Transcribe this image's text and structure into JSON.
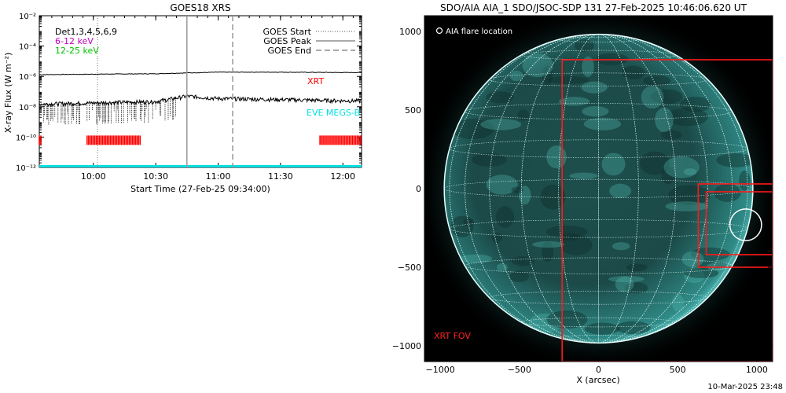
{
  "goes_panel": {
    "title": "GOES18 XRS",
    "ylabel": "X-ray Flux (W m⁻²)",
    "xlabel": "Start Time (27-Feb-25 09:34:00)",
    "legend_left": [
      {
        "label": "Det1,3,4,5,6,9",
        "color": "#000000"
      },
      {
        "label": "6-12 keV",
        "color": "#c000c0"
      },
      {
        "label": "12-25 keV",
        "color": "#00c000"
      }
    ],
    "legend_right": [
      {
        "label": "GOES Start",
        "style": "dotted"
      },
      {
        "label": "GOES Peak",
        "style": "solid"
      },
      {
        "label": "GOES End",
        "style": "dashed"
      }
    ],
    "xrt_label": "XRT",
    "eve_label": "EVE MEGS-B",
    "eve_color": "#00e0e0",
    "xrt_color": "#ff0000",
    "markers": {
      "goes_start": "10:02",
      "goes_peak": "10:45",
      "goes_end": "11:07"
    }
  },
  "chart_data": [
    {
      "type": "line",
      "title": "GOES18 XRS",
      "xlabel": "Start Time (27-Feb-25 09:34:00)",
      "ylabel": "X-ray Flux (W m⁻²)",
      "yscale": "log",
      "ylim": [
        1e-12,
        0.01
      ],
      "xlim": [
        "09:34",
        "12:09"
      ],
      "xticks": [
        "10:00",
        "10:30",
        "11:00",
        "11:30",
        "12:00"
      ],
      "yticks": [
        "10⁻¹²",
        "10⁻¹⁰",
        "10⁻⁸",
        "10⁻⁶",
        "10⁻⁴",
        "10⁻²"
      ],
      "series": [
        {
          "name": "",
          "x": [
            "09:34",
            "10:00",
            "10:30",
            "10:45",
            "11:00",
            "11:30",
            "12:00",
            "12:09"
          ],
          "values": [
            1.3e-06,
            1.4e-06,
            1.5e-06,
            1.7e-06,
            1.9e-06,
            1.9e-06,
            1.8e-06,
            1.8e-06
          ]
        },
        {
          "name": "",
          "x": [
            "09:34",
            "10:00",
            "10:30",
            "10:45",
            "11:00",
            "11:30",
            "12:00",
            "12:09"
          ],
          "values": [
            1.5e-08,
            1.8e-08,
            2.2e-08,
            5e-08,
            3.5e-08,
            3e-08,
            2.5e-08,
            2.5e-08
          ]
        }
      ],
      "xrt_intervals": [
        [
          "09:34",
          "09:35"
        ],
        [
          "09:57",
          "10:23"
        ],
        [
          "11:49",
          "12:09"
        ]
      ],
      "eve_interval": [
        "09:34",
        "12:09"
      ]
    },
    {
      "type": "image",
      "title": "SDO/AIA AIA_1 SDO/JSOC-SDP 131 27-Feb-2025 10:46:06.620 UT",
      "xlabel": "X (arcsec)",
      "xlim": [
        -1100,
        1100
      ],
      "ylim": [
        -1100,
        1100
      ],
      "xticks": [
        "−1000",
        "−500",
        "0",
        "500",
        "1000"
      ],
      "yticks": [
        "−1000",
        "−500",
        "0",
        "500",
        "1000"
      ],
      "legend": "AIA flare location",
      "fov_label": "XRT FOV",
      "flare_location": {
        "x": 930,
        "y": -230
      },
      "fov_boxes": [
        {
          "x0": -230,
          "y0": -1100,
          "x1": 1100,
          "y1": 820
        },
        {
          "x0": 630,
          "y0": -500,
          "x1": 1100,
          "y1": 30
        },
        {
          "x0": 680,
          "y0": -420,
          "x1": 1100,
          "y1": -20
        }
      ]
    }
  ],
  "image_panel": {
    "title": "SDO/AIA AIA_1 SDO/JSOC-SDP 131 27-Feb-2025 10:46:06.620 UT",
    "xlabel": "X (arcsec)",
    "legend": "AIA flare location",
    "fov_label": "XRT FOV"
  },
  "footer_date": "10-Mar-2025 23:48"
}
